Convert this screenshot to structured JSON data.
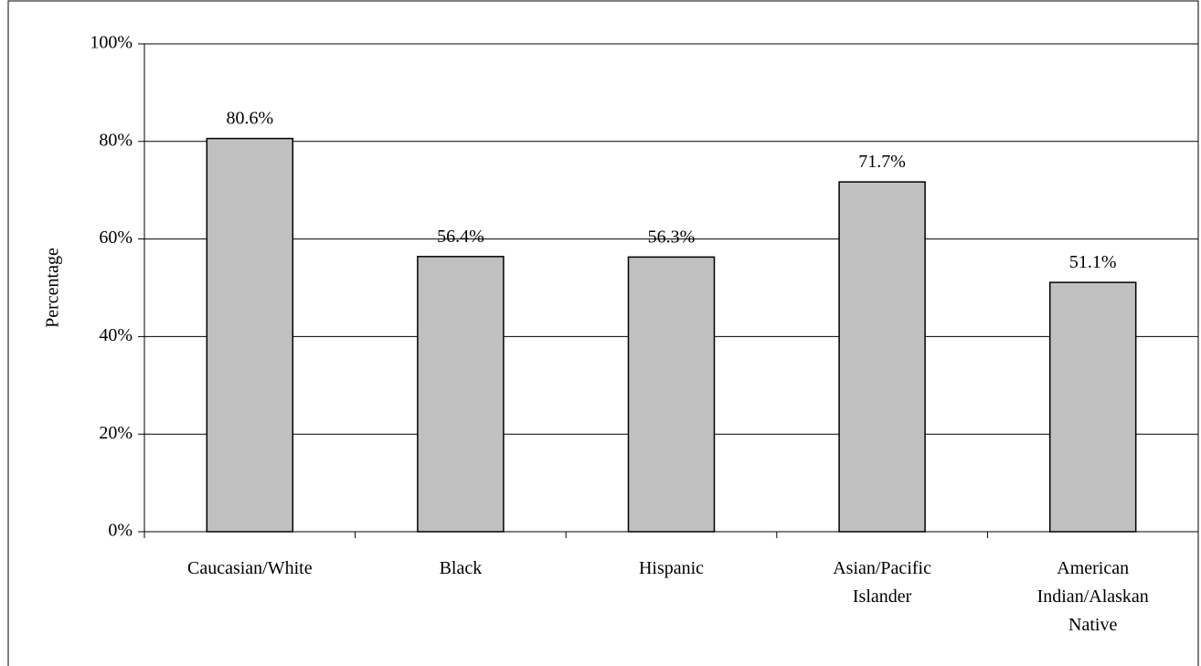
{
  "chart_data": {
    "type": "bar",
    "categories": [
      [
        "Caucasian/White"
      ],
      [
        "Black"
      ],
      [
        "Hispanic"
      ],
      [
        "Asian/Pacific",
        "Islander"
      ],
      [
        "American",
        "Indian/Alaskan",
        "Native"
      ]
    ],
    "values": [
      80.6,
      56.4,
      56.3,
      71.7,
      51.1
    ],
    "data_labels": [
      "80.6%",
      "56.4%",
      "56.3%",
      "71.7%",
      "51.1%"
    ],
    "ylabel": "Percentage",
    "xlabel": "",
    "title": "",
    "ylim": [
      0,
      100
    ],
    "yticks": [
      0,
      20,
      40,
      60,
      80,
      100
    ],
    "ytick_labels": [
      "0%",
      "20%",
      "40%",
      "60%",
      "80%",
      "100%"
    ],
    "grid": true,
    "legend": "none",
    "colors": {
      "bar_fill": "#c0c0c0",
      "bar_stroke": "#000000",
      "grid": "#000000",
      "axis": "#000000"
    }
  }
}
